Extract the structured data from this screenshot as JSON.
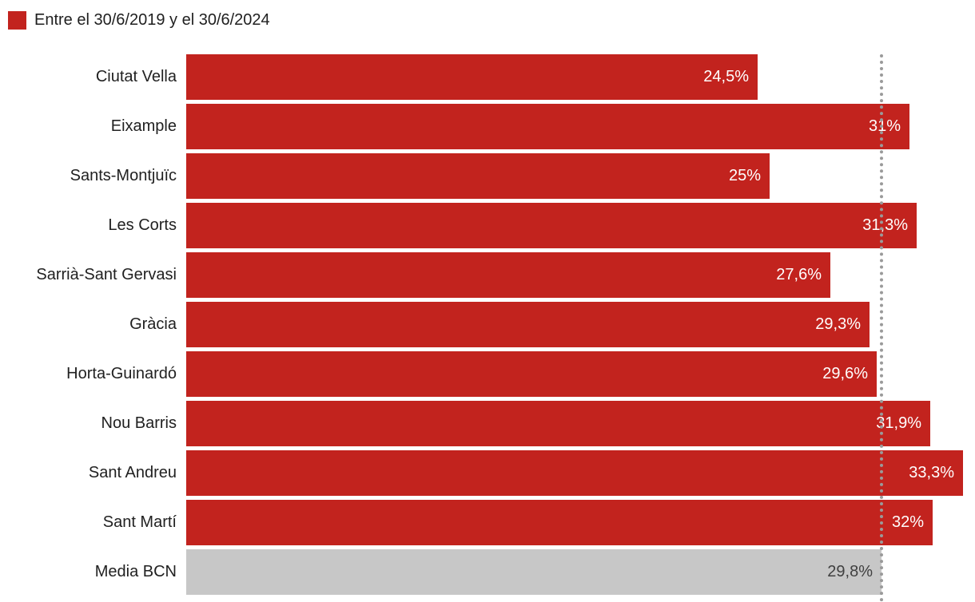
{
  "legend": {
    "label": "Entre el 30/6/2019 y el 30/6/2024",
    "swatch_color": "#c2231e"
  },
  "colors": {
    "bar": "#c2231e",
    "average_bar": "#c7c7c7",
    "value_on_bar": "#ffffff",
    "value_on_average_bar": "#404040",
    "dotted_line": "#9a9a9a"
  },
  "chart_data": {
    "type": "bar",
    "orientation": "horizontal",
    "title": "",
    "xlabel": "",
    "ylabel": "",
    "legend_position": "top-left",
    "grid": false,
    "xlim": [
      0,
      33.3
    ],
    "categories": [
      "Ciutat Vella",
      "Eixample",
      "Sants-Montjuïc",
      "Les Corts",
      "Sarrià-Sant Gervasi",
      "Gràcia",
      "Horta-Guinardó",
      "Nou Barris",
      "Sant Andreu",
      "Sant Martí",
      "Media BCN"
    ],
    "values": [
      24.5,
      31,
      25,
      31.3,
      27.6,
      29.3,
      29.6,
      31.9,
      33.3,
      32,
      29.8
    ],
    "value_labels": [
      "24,5%",
      "31%",
      "25%",
      "31,3%",
      "27,6%",
      "29,3%",
      "29,6%",
      "31,9%",
      "33,3%",
      "32%",
      "29,8%"
    ],
    "highlight_category": "Media BCN",
    "highlight_index": 10,
    "reference_line": {
      "value": 29.8,
      "label": "Media BCN",
      "style": "dotted"
    }
  }
}
